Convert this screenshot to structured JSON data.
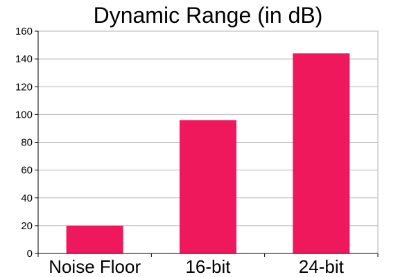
{
  "chart_data": {
    "type": "bar",
    "title": "Dynamic Range (in dB)",
    "xlabel": "",
    "ylabel": "",
    "categories": [
      "Noise Floor",
      "16-bit",
      "24-bit"
    ],
    "values": [
      20,
      96,
      144
    ],
    "ylim": [
      0,
      160
    ],
    "yticks": [
      0,
      20,
      40,
      60,
      80,
      100,
      120,
      140,
      160
    ],
    "grid": true,
    "legend": "none",
    "bar_color": "#f0185c",
    "grid_color": "#b3b3b3",
    "axis_color": "#000000"
  }
}
